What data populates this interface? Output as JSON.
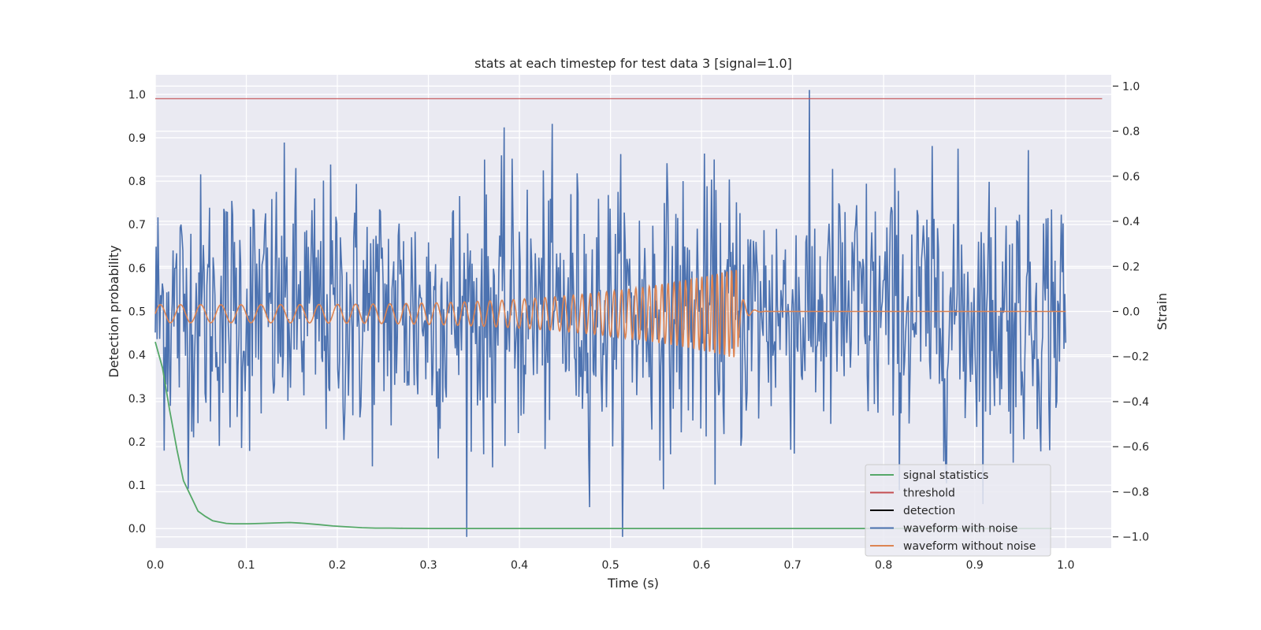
{
  "chart_data": {
    "type": "line",
    "title": "stats at each timestep for test data 3 [signal=1.0]",
    "xlabel": "Time (s)",
    "ylabel_left": "Detection probability",
    "ylabel_right": "Strain",
    "xlim": [
      0.0,
      1.05
    ],
    "ylim_left": [
      -0.045,
      1.045
    ],
    "ylim_right": [
      -1.05,
      1.05
    ],
    "x_ticks": [
      0.0,
      0.1,
      0.2,
      0.3,
      0.4,
      0.5,
      0.6,
      0.7,
      0.8,
      0.9,
      1.0
    ],
    "x_tick_labels": [
      "0.0",
      "0.1",
      "0.2",
      "0.3",
      "0.4",
      "0.5",
      "0.6",
      "0.7",
      "0.8",
      "0.9",
      "1.0"
    ],
    "y_left_ticks": [
      0.0,
      0.1,
      0.2,
      0.3,
      0.4,
      0.5,
      0.6,
      0.7,
      0.8,
      0.9,
      1.0
    ],
    "y_left_tick_labels": [
      "0.0",
      "0.1",
      "0.2",
      "0.3",
      "0.4",
      "0.5",
      "0.6",
      "0.7",
      "0.8",
      "0.9",
      "1.0"
    ],
    "y_right_ticks": [
      -1.0,
      -0.8,
      -0.6,
      -0.4,
      -0.2,
      0.0,
      0.2,
      0.4,
      0.6,
      0.8,
      1.0
    ],
    "y_right_tick_labels": [
      "−1.0",
      "−0.8",
      "−0.6",
      "−0.4",
      "−0.2",
      "0.0",
      "0.2",
      "0.4",
      "0.6",
      "0.8",
      "1.0"
    ],
    "grid": true,
    "legend_position": "lower-right",
    "colors": {
      "signal_statistics": "#55a868",
      "threshold": "#c44e52",
      "detection": "#000000",
      "waveform_with_noise": "#4c72b0",
      "waveform_without_noise": "#dd8452",
      "plot_background": "#eaeaf2",
      "grid": "#ffffff"
    },
    "series": [
      {
        "name": "signal statistics",
        "axis": "left",
        "x": [
          0.0,
          0.008,
          0.016,
          0.024,
          0.031,
          0.039,
          0.047,
          0.055,
          0.063,
          0.07,
          0.078,
          0.086,
          0.094,
          0.102,
          0.117,
          0.133,
          0.148,
          0.164,
          0.18,
          0.195,
          0.211,
          0.227,
          0.242,
          0.258,
          0.273,
          0.289,
          0.3,
          0.4,
          0.5,
          0.6,
          0.7,
          0.8,
          0.9,
          0.984
        ],
        "y": [
          0.43,
          0.37,
          0.27,
          0.18,
          0.11,
          0.075,
          0.04,
          0.028,
          0.018,
          0.015,
          0.012,
          0.011,
          0.011,
          0.011,
          0.012,
          0.013,
          0.014,
          0.012,
          0.009,
          0.006,
          0.004,
          0.002,
          0.001,
          0.001,
          0.0005,
          0.0003,
          0.0002,
          0.0001,
          0.0001,
          0.0001,
          0.0001,
          0.0001,
          0.0001,
          0.0001
        ]
      },
      {
        "name": "threshold",
        "axis": "left",
        "x": [
          0.0,
          1.04
        ],
        "y": [
          0.99,
          0.99
        ]
      },
      {
        "name": "detection",
        "axis": "left",
        "x": [],
        "y": []
      },
      {
        "name": "waveform with noise",
        "axis": "right",
        "n_points": 1024,
        "x_range": [
          0.0,
          1.0
        ],
        "amplitude_range": [
          -1.0,
          1.0
        ]
      },
      {
        "name": "waveform without noise",
        "axis": "right",
        "chirp": {
          "start_time": 0.0,
          "merger_time": 0.64,
          "end_time": 1.0,
          "start_amplitude": 0.04,
          "peak_amplitude": 0.2,
          "start_frequency_hz": 45,
          "merger_frequency_hz": 200
        }
      }
    ],
    "legend": [
      "signal statistics",
      "threshold",
      "detection",
      "waveform with noise",
      "waveform without noise"
    ]
  }
}
